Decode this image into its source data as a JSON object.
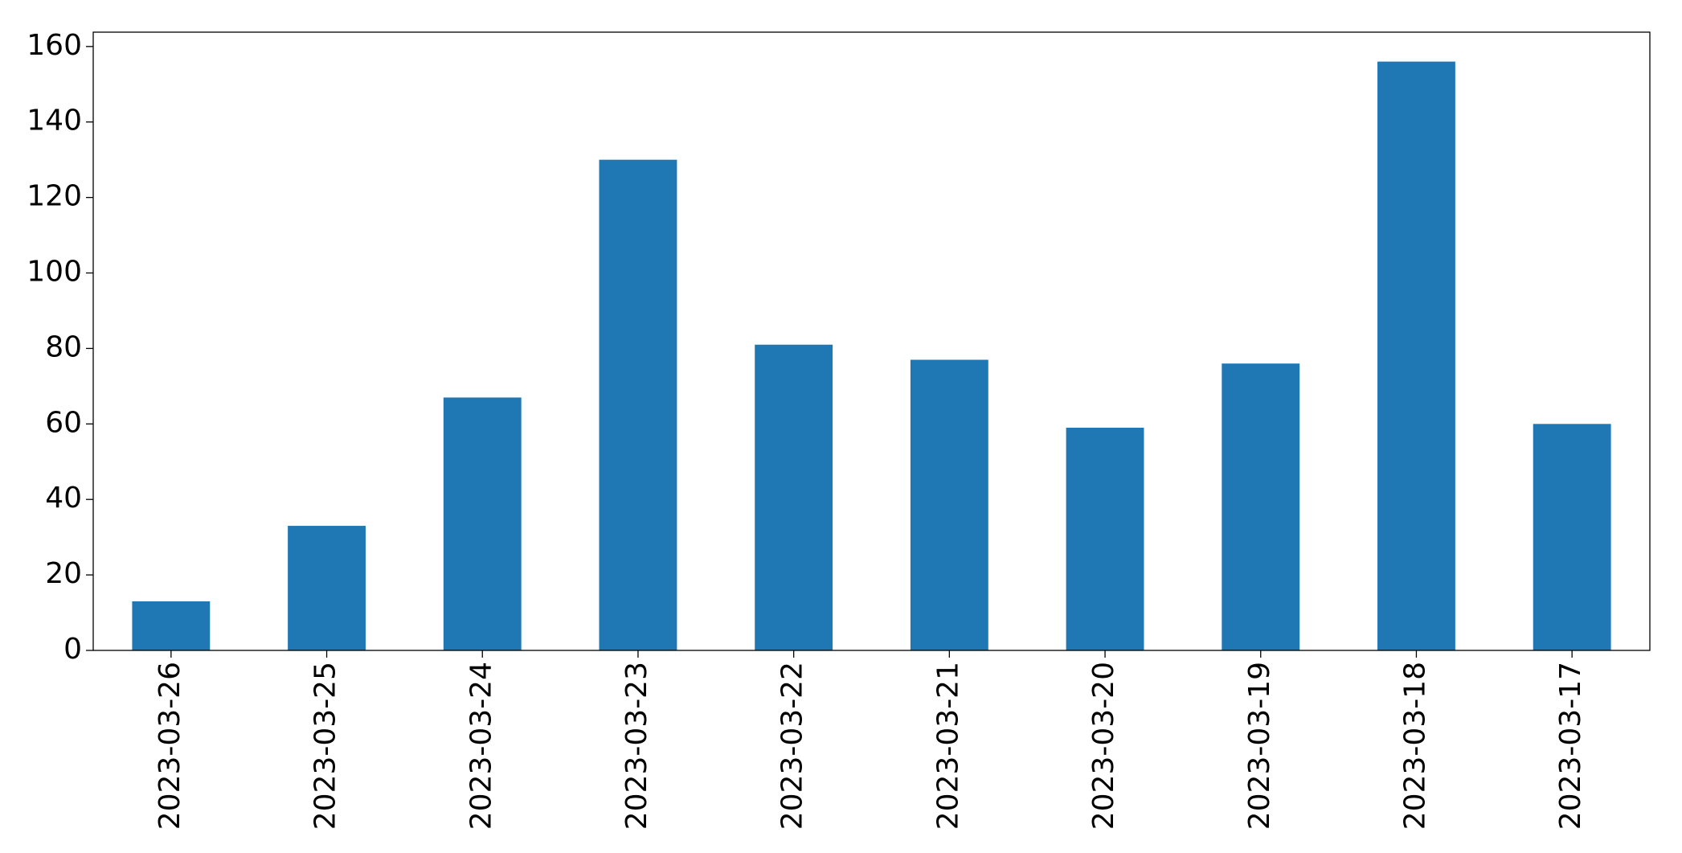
{
  "chart_data": {
    "type": "bar",
    "categories": [
      "2023-03-26",
      "2023-03-25",
      "2023-03-24",
      "2023-03-23",
      "2023-03-22",
      "2023-03-21",
      "2023-03-20",
      "2023-03-19",
      "2023-03-18",
      "2023-03-17"
    ],
    "values": [
      13,
      33,
      67,
      130,
      81,
      77,
      59,
      76,
      156,
      60
    ],
    "color": "#1f77b4",
    "ylim": [
      0,
      163.8
    ],
    "yticks": [
      0,
      20,
      40,
      60,
      80,
      100,
      120,
      140,
      160
    ],
    "grid": false
  }
}
